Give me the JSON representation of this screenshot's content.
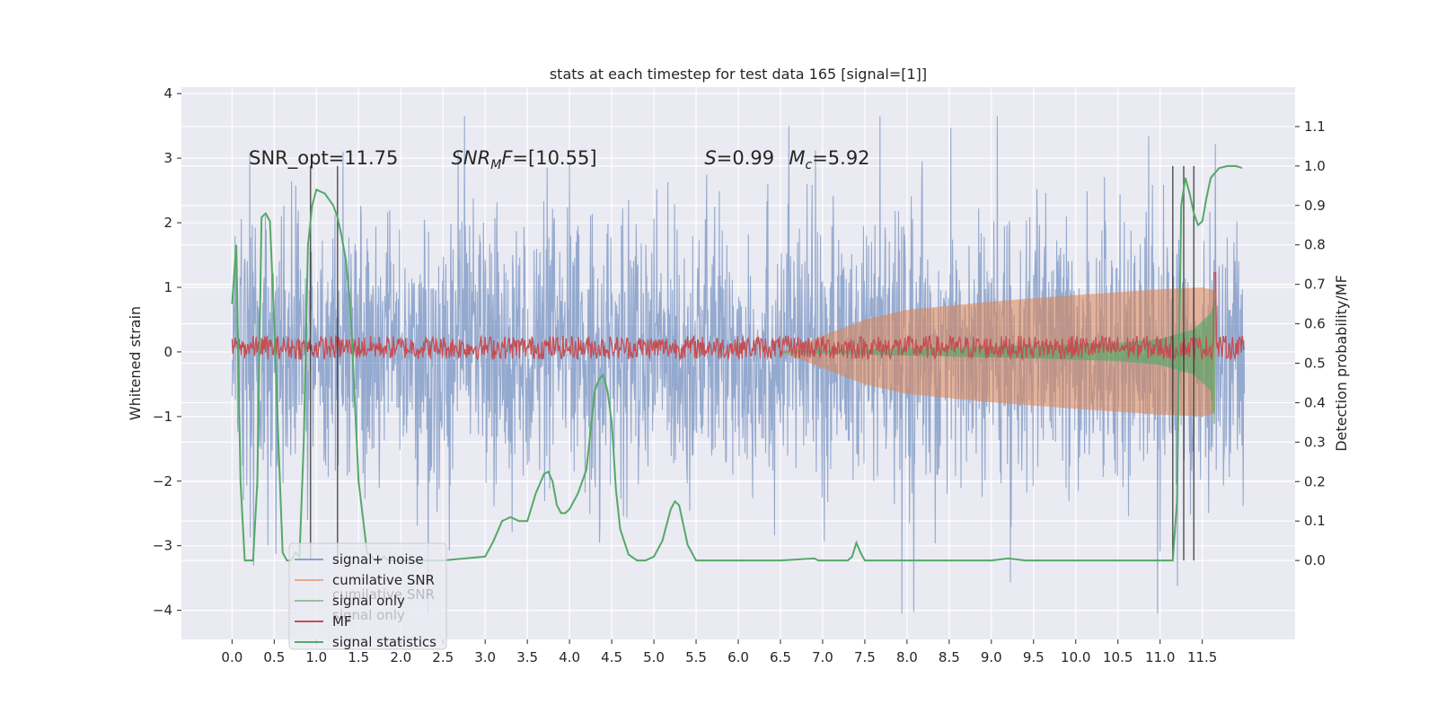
{
  "chart_data": {
    "type": "line",
    "title": "stats at each timestep for test data 165 [signal=[1]]",
    "xlabel": "",
    "ylabel": "Whitened strain",
    "ylabel_right": "Detection probability/MF",
    "xlim": [
      -0.6,
      12.6
    ],
    "ylim": [
      -4.45,
      4.1
    ],
    "ylim_right": [
      -0.2,
      1.2
    ],
    "x_ticks": [
      "0.0",
      "0.5",
      "1.0",
      "1.5",
      "2.0",
      "2.5",
      "3.0",
      "3.5",
      "4.0",
      "4.5",
      "5.0",
      "5.5",
      "6.0",
      "6.5",
      "7.0",
      "7.5",
      "8.0",
      "8.5",
      "9.0",
      "9.5",
      "10.0",
      "10.5",
      "11.0",
      "11.5"
    ],
    "y_ticks": [
      "4",
      "3",
      "2",
      "1",
      "0",
      "−1",
      "−2",
      "−3",
      "−4"
    ],
    "y_ticks_right": [
      "1.1",
      "1.0",
      "0.9",
      "0.8",
      "0.7",
      "0.6",
      "0.5",
      "0.4",
      "0.3",
      "0.2",
      "0.1",
      "0.0"
    ],
    "grid": true,
    "legend_position": "lower-left",
    "annotations": [
      {
        "text": "SNR_opt=11.75",
        "x": 0.2,
        "y": 3.0
      },
      {
        "text": "SNR_MF=[10.55]",
        "x": 2.6,
        "y": 3.0
      },
      {
        "text": "S=0.99",
        "x": 5.6,
        "y": 3.0
      },
      {
        "text": "Mc=5.92",
        "x": 6.6,
        "y": 3.0
      }
    ],
    "series": [
      {
        "name": "signal+ noise",
        "color": "#4c72b0",
        "axis": "left",
        "description_values": {
          "x_range": [
            0.0,
            12.0
          ],
          "envelope_typical": [
            -2.0,
            2.2
          ],
          "max": 3.65,
          "min": -4.05
        }
      },
      {
        "name": "cumilative SNR",
        "color": "#dd8452",
        "axis": "left",
        "envelope": {
          "x": [
            6.5,
            7.0,
            7.5,
            8.0,
            9.0,
            10.0,
            11.0,
            11.5,
            11.65
          ],
          "upper": [
            0.0,
            0.25,
            0.5,
            0.65,
            0.78,
            0.88,
            0.97,
            1.0,
            0.95
          ],
          "lower": [
            0.0,
            -0.25,
            -0.5,
            -0.65,
            -0.78,
            -0.88,
            -0.97,
            -1.0,
            -0.95
          ]
        }
      },
      {
        "name": "signal only",
        "color": "#55a868",
        "axis": "left",
        "envelope": {
          "x": [
            6.5,
            7.5,
            8.5,
            9.5,
            10.5,
            11.0,
            11.4,
            11.6,
            11.65
          ],
          "upper": [
            0.0,
            0.04,
            0.07,
            0.1,
            0.14,
            0.2,
            0.35,
            0.6,
            0.8
          ],
          "lower": [
            0.0,
            -0.04,
            -0.07,
            -0.1,
            -0.14,
            -0.2,
            -0.35,
            -0.6,
            -1.2
          ]
        }
      },
      {
        "name": "MF",
        "color": "#c44e52",
        "axis": "right",
        "description_values": {
          "x_range": [
            0.0,
            12.0
          ],
          "band": [
            0.51,
            0.57
          ],
          "spike_x": 11.65,
          "spike_y": 0.73
        }
      },
      {
        "name": "signal statistics",
        "color": "#55a868",
        "axis": "right",
        "x": [
          0.0,
          0.05,
          0.1,
          0.15,
          0.2,
          0.25,
          0.3,
          0.35,
          0.4,
          0.45,
          0.5,
          0.55,
          0.6,
          0.65,
          0.7,
          0.75,
          0.8,
          0.85,
          0.9,
          0.95,
          1.0,
          1.05,
          1.1,
          1.2,
          1.25,
          1.3,
          1.35,
          1.4,
          1.5,
          1.6,
          1.7,
          1.75,
          1.8,
          1.85,
          1.9,
          2.0,
          2.5,
          3.0,
          3.1,
          3.2,
          3.3,
          3.4,
          3.5,
          3.6,
          3.7,
          3.75,
          3.8,
          3.85,
          3.9,
          3.95,
          4.0,
          4.1,
          4.2,
          4.3,
          4.35,
          4.4,
          4.45,
          4.5,
          4.55,
          4.6,
          4.7,
          4.8,
          4.9,
          5.0,
          5.1,
          5.2,
          5.25,
          5.3,
          5.35,
          5.4,
          5.5,
          5.6,
          6.0,
          6.5,
          6.9,
          6.95,
          7.0,
          7.3,
          7.35,
          7.4,
          7.45,
          7.5,
          7.7,
          8.0,
          9.0,
          9.2,
          9.4,
          10.0,
          11.0,
          11.15,
          11.2,
          11.25,
          11.3,
          11.35,
          11.4,
          11.45,
          11.5,
          11.55,
          11.6,
          11.7,
          11.8,
          11.9,
          11.97
        ],
        "values": [
          0.65,
          0.8,
          0.2,
          0.0,
          0.0,
          0.0,
          0.2,
          0.87,
          0.88,
          0.86,
          0.6,
          0.3,
          0.02,
          0.0,
          0.0,
          0.02,
          0.01,
          0.3,
          0.8,
          0.9,
          0.94,
          0.935,
          0.93,
          0.9,
          0.87,
          0.82,
          0.76,
          0.65,
          0.2,
          0.02,
          0.0,
          0.0,
          0.01,
          0.0,
          0.0,
          0.0,
          0.0,
          0.01,
          0.05,
          0.1,
          0.11,
          0.1,
          0.1,
          0.17,
          0.22,
          0.225,
          0.2,
          0.14,
          0.12,
          0.12,
          0.13,
          0.17,
          0.23,
          0.43,
          0.46,
          0.47,
          0.43,
          0.35,
          0.18,
          0.08,
          0.015,
          0.0,
          0.0,
          0.01,
          0.05,
          0.13,
          0.15,
          0.14,
          0.09,
          0.04,
          0.0,
          0.0,
          0.0,
          0.0,
          0.005,
          0.0,
          0.0,
          0.0,
          0.01,
          0.045,
          0.02,
          0.0,
          0.0,
          0.0,
          0.0,
          0.005,
          0.0,
          0.0,
          0.0,
          0.0,
          0.15,
          0.9,
          0.97,
          0.93,
          0.88,
          0.85,
          0.86,
          0.92,
          0.97,
          0.995,
          1.0,
          1.0,
          0.995
        ]
      },
      {
        "name": "",
        "color": "#333333",
        "axis": "right",
        "kind": "vertical-lines",
        "x": [
          0.93,
          1.25,
          11.15,
          11.28,
          11.4
        ],
        "y_range": [
          0.0,
          1.0
        ]
      }
    ]
  },
  "legend": {
    "items": [
      {
        "label": "signal+ noise",
        "color": "#4c72b0",
        "alpha": 0.6
      },
      {
        "label": "cumilative SNR",
        "color": "#dd8452",
        "alpha": 0.6
      },
      {
        "label": "signal only",
        "color": "#55a868",
        "alpha": 0.6
      },
      {
        "label": "MF",
        "color": "#c44e52",
        "alpha": 1.0
      },
      {
        "label": "signal statistics",
        "color": "#55a868",
        "alpha": 1.0
      }
    ],
    "ghost_labels": [
      "cumilative SNR",
      "signal only"
    ]
  },
  "colors": {
    "axes_bg": "#eaeaf2",
    "grid": "#ffffff",
    "text": "#262626"
  }
}
